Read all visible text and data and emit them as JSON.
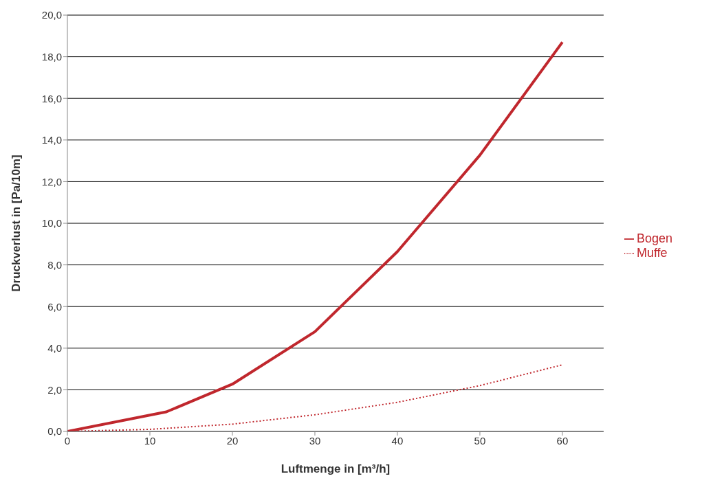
{
  "chart_data": {
    "type": "line",
    "xlabel": "Luftmenge in [m³/h]",
    "ylabel": "Druckverlust in [Pa/10m]",
    "x": [
      0,
      10,
      20,
      30,
      40,
      50,
      60
    ],
    "series": [
      {
        "name": "Muffe",
        "color": "#c0272d",
        "line_style": "dotted",
        "values": [
          0,
          0.1,
          0.35,
          0.8,
          1.4,
          2.2,
          3.2
        ]
      },
      {
        "name": "Bogen",
        "color": "#c0272d",
        "line_style": "solid",
        "x": [
          0,
          12,
          20,
          30,
          40,
          50,
          60
        ],
        "values": [
          0,
          0.94,
          2.27,
          4.79,
          8.64,
          13.27,
          18.7
        ]
      }
    ],
    "xlim": [
      0,
      65
    ],
    "xticks": [
      0,
      10,
      20,
      30,
      40,
      50,
      60
    ],
    "ylim": [
      0,
      20
    ],
    "yticks": [
      {
        "value": 0,
        "label": "0,0"
      },
      {
        "value": 2,
        "label": "2,0"
      },
      {
        "value": 4,
        "label": "4,0"
      },
      {
        "value": 6,
        "label": "6,0"
      },
      {
        "value": 8,
        "label": "8,0"
      },
      {
        "value": 10,
        "label": "10,0"
      },
      {
        "value": 12,
        "label": "12,0"
      },
      {
        "value": 14,
        "label": "14,0"
      },
      {
        "value": 16,
        "label": "16,0"
      },
      {
        "value": 18,
        "label": "18,0"
      },
      {
        "value": 20,
        "label": "20,0"
      }
    ],
    "grid": "y",
    "legend": "right"
  }
}
